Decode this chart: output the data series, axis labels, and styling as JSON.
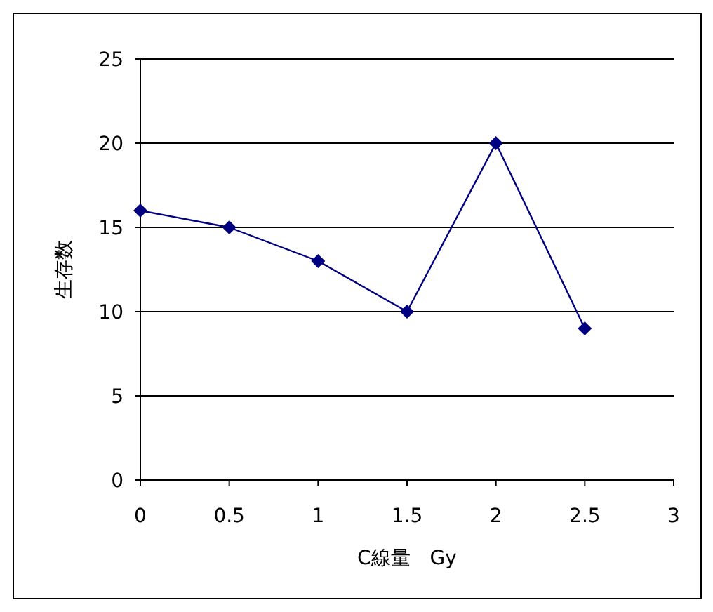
{
  "chart_data": {
    "type": "line",
    "xlabel": "C線量　Gy",
    "ylabel": "生存数",
    "x": [
      0,
      0.5,
      1,
      1.5,
      2,
      2.5
    ],
    "series": [
      {
        "color": "#000080",
        "values": [
          16,
          15,
          13,
          10,
          20,
          9
        ]
      }
    ],
    "xlim": [
      0,
      3
    ],
    "ylim": [
      0,
      25
    ],
    "xticks": [
      0,
      0.5,
      1,
      1.5,
      2,
      2.5,
      3
    ],
    "yticks": [
      0,
      5,
      10,
      15,
      20,
      25
    ],
    "grid": "y",
    "marker": "diamond",
    "line_style": "solid"
  }
}
